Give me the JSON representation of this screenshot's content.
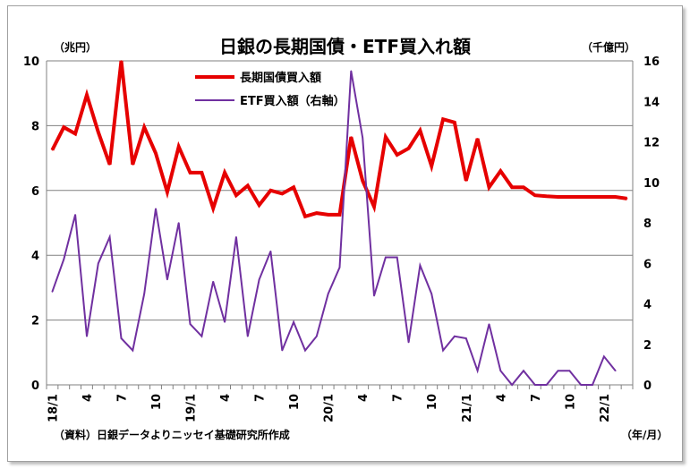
{
  "chart_data": {
    "type": "line",
    "title": "日銀の長期国債・ETF買入れ額",
    "left_unit": "（兆円）",
    "right_unit": "（千億円）",
    "x_unit": "（年/月）",
    "source": "（資料）日銀データよりニッセイ基礎研究所作成",
    "y_left": {
      "min": 0,
      "max": 10,
      "ticks": [
        "0",
        "2",
        "4",
        "6",
        "8",
        "10"
      ]
    },
    "y_right": {
      "min": 0,
      "max": 16,
      "ticks": [
        "0",
        "2",
        "4",
        "6",
        "8",
        "10",
        "12",
        "14",
        "16"
      ]
    },
    "x_tick_labels": [
      {
        "index": 0,
        "label": "18/1"
      },
      {
        "index": 3,
        "label": "4"
      },
      {
        "index": 6,
        "label": "7"
      },
      {
        "index": 9,
        "label": "10"
      },
      {
        "index": 12,
        "label": "19/1"
      },
      {
        "index": 15,
        "label": "4"
      },
      {
        "index": 18,
        "label": "7"
      },
      {
        "index": 21,
        "label": "10"
      },
      {
        "index": 24,
        "label": "20/1"
      },
      {
        "index": 27,
        "label": "4"
      },
      {
        "index": 30,
        "label": "7"
      },
      {
        "index": 33,
        "label": "10"
      },
      {
        "index": 36,
        "label": "21/1"
      },
      {
        "index": 39,
        "label": "4"
      },
      {
        "index": 42,
        "label": "7"
      },
      {
        "index": 45,
        "label": "10"
      },
      {
        "index": 48,
        "label": "22/1"
      }
    ],
    "grid": true,
    "legend_position": "top-left",
    "series": [
      {
        "name": "長期国債買入額",
        "axis": "left",
        "color": "#e60000",
        "values": [
          7.25,
          7.95,
          7.75,
          8.95,
          7.8,
          6.8,
          10.0,
          6.8,
          7.95,
          7.15,
          5.95,
          7.35,
          6.55,
          6.55,
          5.45,
          6.55,
          5.85,
          6.15,
          5.55,
          6.0,
          5.9,
          6.1,
          5.2,
          5.3,
          5.25,
          5.25,
          7.65,
          6.3,
          5.5,
          7.65,
          7.1,
          7.3,
          7.85,
          6.75,
          8.2,
          8.1,
          6.3,
          7.6,
          6.1,
          6.6,
          6.1,
          6.1,
          5.85,
          5.82,
          5.8,
          5.8,
          5.8,
          5.8,
          5.8,
          5.8,
          5.75
        ]
      },
      {
        "name": "ETF買入額（右軸）",
        "axis": "right",
        "color": "#7030a0",
        "values": [
          4.6,
          6.2,
          8.4,
          2.4,
          6.0,
          7.3,
          2.3,
          1.7,
          4.5,
          8.7,
          5.2,
          8.0,
          3.0,
          2.4,
          5.1,
          3.1,
          7.3,
          2.4,
          5.2,
          6.6,
          1.7,
          3.1,
          1.7,
          2.4,
          4.5,
          5.8,
          15.5,
          12.2,
          4.4,
          6.3,
          6.3,
          2.1,
          5.9,
          4.5,
          1.7,
          2.4,
          2.3,
          0.7,
          3.0,
          0.7,
          0.0,
          0.7,
          0.0,
          0.0,
          0.7,
          0.7,
          0.0,
          0.0,
          1.4,
          0.7
        ]
      }
    ]
  }
}
